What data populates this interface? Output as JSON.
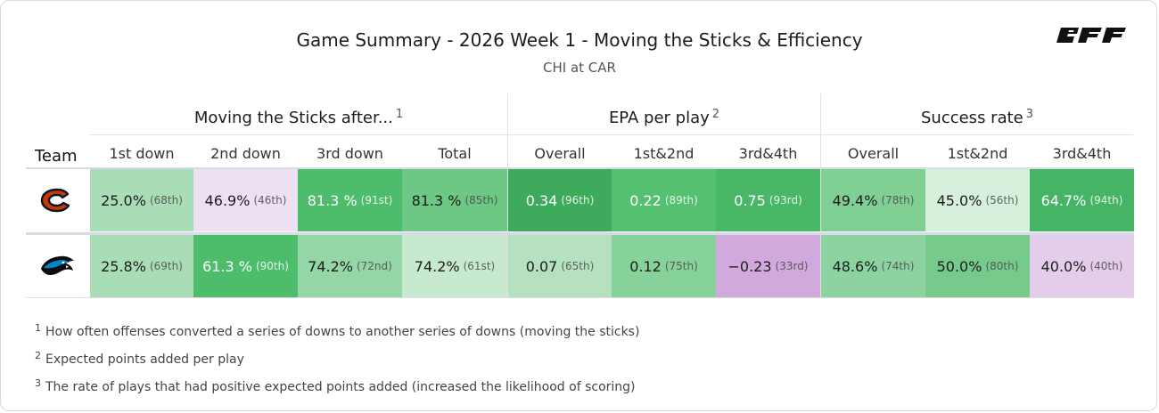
{
  "header": {
    "title": "Game Summary - 2026 Week 1 - Moving the Sticks & Efficiency",
    "subtitle": "CHI at CAR",
    "logo_text": "PFF"
  },
  "groups": [
    {
      "label": "Moving the Sticks after...",
      "note": "1"
    },
    {
      "label": "EPA per play",
      "note": "2"
    },
    {
      "label": "Success rate",
      "note": "3"
    }
  ],
  "columns": {
    "team": "Team",
    "labels": [
      "1st down",
      "2nd down",
      "3rd down",
      "Total",
      "Overall",
      "1st&2nd",
      "3rd&4th",
      "Overall",
      "1st&2nd",
      "3rd&4th"
    ]
  },
  "rows": [
    {
      "team": "CHI",
      "logo_icon": "bears-c-logo-icon",
      "cells": [
        {
          "value": "25.0%",
          "rank": "(68th)",
          "color": "#a9ddb6",
          "light": false
        },
        {
          "value": "46.9%",
          "rank": "(46th)",
          "color": "#ede0f2",
          "light": false
        },
        {
          "value": "81.3 %",
          "rank": "(91st)",
          "color": "#4dbd6c",
          "light": true
        },
        {
          "value": "81.3 %",
          "rank": "(85th)",
          "color": "#6cc884",
          "light": false
        },
        {
          "value": "0.34",
          "rank": "(96th)",
          "color": "#3daa5c",
          "light": true
        },
        {
          "value": "0.22",
          "rank": "(89th)",
          "color": "#55c070",
          "light": true
        },
        {
          "value": "0.75",
          "rank": "(93rd)",
          "color": "#48b866",
          "light": true
        },
        {
          "value": "49.4%",
          "rank": "(78th)",
          "color": "#80cf94",
          "light": false
        },
        {
          "value": "45.0%",
          "rank": "(56th)",
          "color": "#d6f0dc",
          "light": false
        },
        {
          "value": "64.7%",
          "rank": "(94th)",
          "color": "#45b464",
          "light": true
        }
      ]
    },
    {
      "team": "CAR",
      "logo_icon": "panthers-logo-icon",
      "cells": [
        {
          "value": "25.8%",
          "rank": "(69th)",
          "color": "#a9ddb6",
          "light": false
        },
        {
          "value": "61.3 %",
          "rank": "(90th)",
          "color": "#4dbd6c",
          "light": true
        },
        {
          "value": "74.2%",
          "rank": "(72nd)",
          "color": "#94d6a5",
          "light": false
        },
        {
          "value": "74.2%",
          "rank": "(61st)",
          "color": "#c6e9cf",
          "light": false
        },
        {
          "value": "0.07",
          "rank": "(65th)",
          "color": "#b5e1c0",
          "light": false
        },
        {
          "value": "0.12",
          "rank": "(75th)",
          "color": "#87d19a",
          "light": false
        },
        {
          "value": "−0.23",
          "rank": "(33rd)",
          "color": "#d2a9dc",
          "light": false
        },
        {
          "value": "48.6%",
          "rank": "(74th)",
          "color": "#8dd39f",
          "light": false
        },
        {
          "value": "50.0%",
          "rank": "(80th)",
          "color": "#76cb8c",
          "light": false
        },
        {
          "value": "40.0%",
          "rank": "(40th)",
          "color": "#e3cdeb",
          "light": false
        }
      ]
    }
  ],
  "footnotes": [
    {
      "num": "1",
      "text": "How often offenses converted a series of downs to another series of downs (moving the sticks)"
    },
    {
      "num": "2",
      "text": "Expected points added per play"
    },
    {
      "num": "3",
      "text": "The rate of plays that had positive expected points added (increased the likelihood of scoring)"
    }
  ]
}
